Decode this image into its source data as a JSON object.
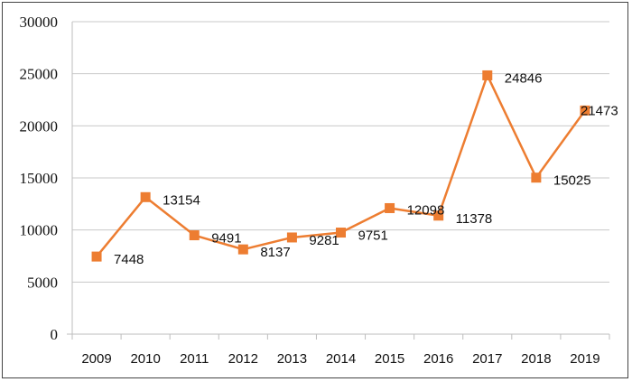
{
  "chart_data": {
    "type": "line",
    "categories": [
      "2009",
      "2010",
      "2011",
      "2012",
      "2013",
      "2014",
      "2015",
      "2016",
      "2017",
      "2018",
      "2019"
    ],
    "series": [
      {
        "values": [
          7448,
          13154,
          9491,
          8137,
          9281,
          9751,
          12098,
          11378,
          24846,
          15025,
          21473
        ],
        "color": "#ED7D31",
        "marker": "square"
      }
    ],
    "data_labels": [
      "7448",
      "13154",
      "9491",
      "8137",
      "9281",
      "9751",
      "12098",
      "11378",
      "24846",
      "15025",
      "21473"
    ],
    "ylim": [
      0,
      30000
    ],
    "yticks": [
      "0",
      "5000",
      "10000",
      "15000",
      "20000",
      "25000",
      "30000"
    ],
    "grid": "horizontal",
    "legend": "none",
    "title": "",
    "xlabel": "",
    "ylabel": ""
  }
}
